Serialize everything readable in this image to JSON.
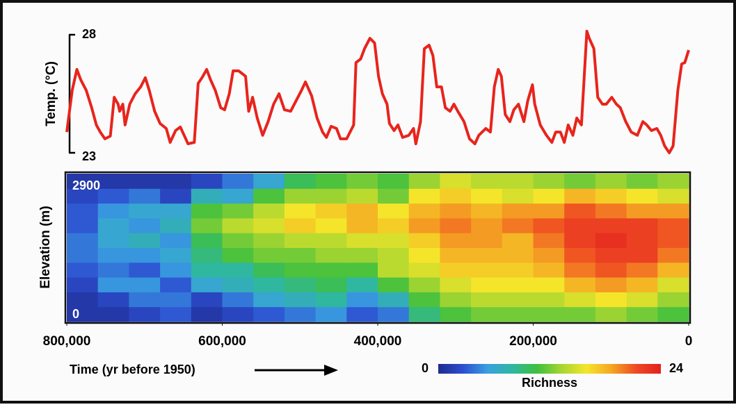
{
  "chart_data": [
    {
      "type": "line",
      "ylabel": "Temp. (°C)",
      "color": "#e8241c",
      "xlim": [
        800000,
        0
      ],
      "ylim": [
        23,
        28
      ],
      "yticks": [
        23,
        28
      ],
      "x": [
        800000,
        793000,
        787000,
        782000,
        775000,
        768000,
        762000,
        757000,
        751000,
        744000,
        739000,
        734000,
        732000,
        728000,
        725000,
        719000,
        712000,
        705000,
        699000,
        694000,
        687000,
        680000,
        672000,
        667000,
        660000,
        654000,
        649000,
        644000,
        636000,
        631000,
        626000,
        620000,
        615000,
        609000,
        602000,
        597000,
        591000,
        586000,
        579000,
        570000,
        566000,
        561000,
        555000,
        548000,
        541000,
        534000,
        527000,
        520000,
        512000,
        505000,
        498000,
        493000,
        485000,
        478000,
        471000,
        466000,
        460000,
        453000,
        448000,
        440000,
        431000,
        428000,
        422000,
        417000,
        410000,
        404000,
        399000,
        394000,
        388000,
        385000,
        379000,
        374000,
        368000,
        360000,
        354000,
        351000,
        345000,
        340000,
        334000,
        329000,
        324000,
        318000,
        313000,
        307000,
        302000,
        297000,
        289000,
        282000,
        275000,
        270000,
        261000,
        255000,
        250000,
        245000,
        241000,
        236000,
        230000,
        225000,
        219000,
        212000,
        207000,
        201000,
        198000,
        191000,
        183000,
        176000,
        171000,
        165000,
        160000,
        155000,
        149000,
        144000,
        138000,
        131000,
        128000,
        122000,
        117000,
        111000,
        106000,
        99000,
        93000,
        88000,
        81000,
        74000,
        66000,
        59000,
        54000,
        48000,
        41000,
        36000,
        31000,
        25000,
        20000,
        14000,
        9000,
        5000,
        0
      ],
      "values": [
        23.88,
        25.65,
        26.53,
        26.09,
        25.65,
        24.91,
        24.18,
        23.88,
        23.59,
        23.71,
        25.35,
        25.06,
        24.76,
        25.06,
        24.18,
        25.06,
        25.5,
        25.79,
        26.18,
        25.65,
        24.76,
        24.24,
        24.03,
        23.44,
        23.94,
        24.09,
        23.74,
        23.38,
        23.44,
        25.94,
        26.18,
        26.53,
        26.09,
        25.65,
        24.91,
        24.82,
        25.5,
        26.47,
        26.47,
        26.24,
        24.76,
        25.35,
        24.47,
        23.74,
        24.32,
        25.06,
        25.5,
        24.82,
        24.76,
        25.21,
        25.65,
        26.0,
        25.41,
        24.47,
        23.88,
        23.65,
        24.12,
        24.03,
        23.59,
        23.59,
        24.18,
        26.82,
        26.97,
        27.41,
        27.85,
        27.65,
        26.24,
        25.5,
        25.06,
        24.24,
        23.94,
        24.18,
        23.65,
        23.74,
        24.03,
        23.38,
        24.32,
        27.41,
        27.56,
        27.12,
        25.79,
        25.79,
        24.91,
        24.76,
        25.06,
        24.76,
        24.32,
        23.59,
        23.38,
        23.74,
        24.03,
        23.88,
        25.79,
        26.53,
        26.24,
        24.62,
        24.32,
        24.82,
        25.06,
        24.32,
        25.21,
        25.88,
        25.06,
        24.18,
        23.74,
        23.44,
        23.88,
        23.88,
        23.44,
        24.18,
        23.74,
        24.47,
        24.18,
        28.15,
        27.85,
        27.41,
        25.35,
        25.06,
        25.06,
        25.35,
        25.06,
        24.91,
        24.32,
        23.88,
        23.74,
        24.32,
        24.18,
        23.94,
        24.03,
        23.74,
        23.29,
        23.0,
        23.29,
        25.65,
        26.76,
        26.82,
        27.35
      ]
    },
    {
      "type": "heatmap",
      "ylabel": "Elevation (m)",
      "xlabel": "Time (yr before 1950)",
      "colorbar_label": "Richness",
      "xlim": [
        800000,
        0
      ],
      "ylim": [
        0,
        2900
      ],
      "xticks": [
        {
          "value": 800000,
          "label": "800,000"
        },
        {
          "value": 600000,
          "label": "600,000"
        },
        {
          "value": 400000,
          "label": "400,000"
        },
        {
          "value": 200000,
          "label": "200,000"
        },
        0
      ],
      "yticks": [
        0,
        2900
      ],
      "clim": [
        0,
        24
      ],
      "cticks": [
        0,
        24
      ],
      "colormap": [
        "#1f2a8f",
        "#2c4fd0",
        "#3aa0e0",
        "#2fb7a0",
        "#3fbf3f",
        "#a8d630",
        "#f5e52a",
        "#f5a623",
        "#ee4a22",
        "#e3201f"
      ],
      "x": [
        780000,
        740000,
        700000,
        660000,
        620000,
        580000,
        540000,
        500000,
        460000,
        420000,
        380000,
        340000,
        300000,
        260000,
        220000,
        180000,
        140000,
        100000,
        60000,
        20000
      ],
      "y": [
        145,
        435,
        725,
        1015,
        1305,
        1595,
        1885,
        2175,
        2465,
        2755
      ],
      "z": [
        [
          1,
          1,
          2,
          3,
          1,
          2,
          3,
          4,
          5,
          3,
          4,
          9,
          11,
          12,
          12,
          12,
          12,
          13,
          12,
          11
        ],
        [
          1,
          2,
          4,
          4,
          2,
          4,
          6,
          7,
          8,
          5,
          7,
          11,
          13,
          14,
          14,
          14,
          15,
          16,
          15,
          13
        ],
        [
          2,
          5,
          5,
          3,
          6,
          7,
          8,
          9,
          10,
          8,
          11,
          13,
          15,
          16,
          16,
          16,
          18,
          19,
          18,
          15
        ],
        [
          3,
          4,
          3,
          5,
          8,
          8,
          10,
          11,
          11,
          11,
          14,
          15,
          17,
          17,
          17,
          18,
          20,
          21,
          20,
          18
        ],
        [
          4,
          5,
          5,
          6,
          9,
          11,
          12,
          12,
          13,
          13,
          14,
          16,
          18,
          18,
          18,
          19,
          21,
          22,
          22,
          20
        ],
        [
          4,
          6,
          7,
          5,
          10,
          12,
          13,
          14,
          14,
          15,
          15,
          17,
          19,
          19,
          18,
          20,
          22,
          23,
          22,
          21
        ],
        [
          3,
          6,
          5,
          7,
          12,
          14,
          15,
          17,
          16,
          18,
          17,
          19,
          20,
          19,
          20,
          21,
          22,
          22,
          22,
          21
        ],
        [
          3,
          5,
          6,
          6,
          11,
          12,
          14,
          16,
          17,
          18,
          16,
          18,
          19,
          18,
          19,
          19,
          21,
          20,
          19,
          19
        ],
        [
          2,
          3,
          4,
          2,
          7,
          6,
          11,
          13,
          13,
          14,
          12,
          16,
          17,
          16,
          15,
          16,
          18,
          17,
          16,
          15
        ],
        [
          1,
          1,
          1,
          1,
          2,
          4,
          6,
          10,
          11,
          12,
          11,
          13,
          15,
          14,
          14,
          13,
          12,
          13,
          12,
          13
        ]
      ]
    }
  ]
}
